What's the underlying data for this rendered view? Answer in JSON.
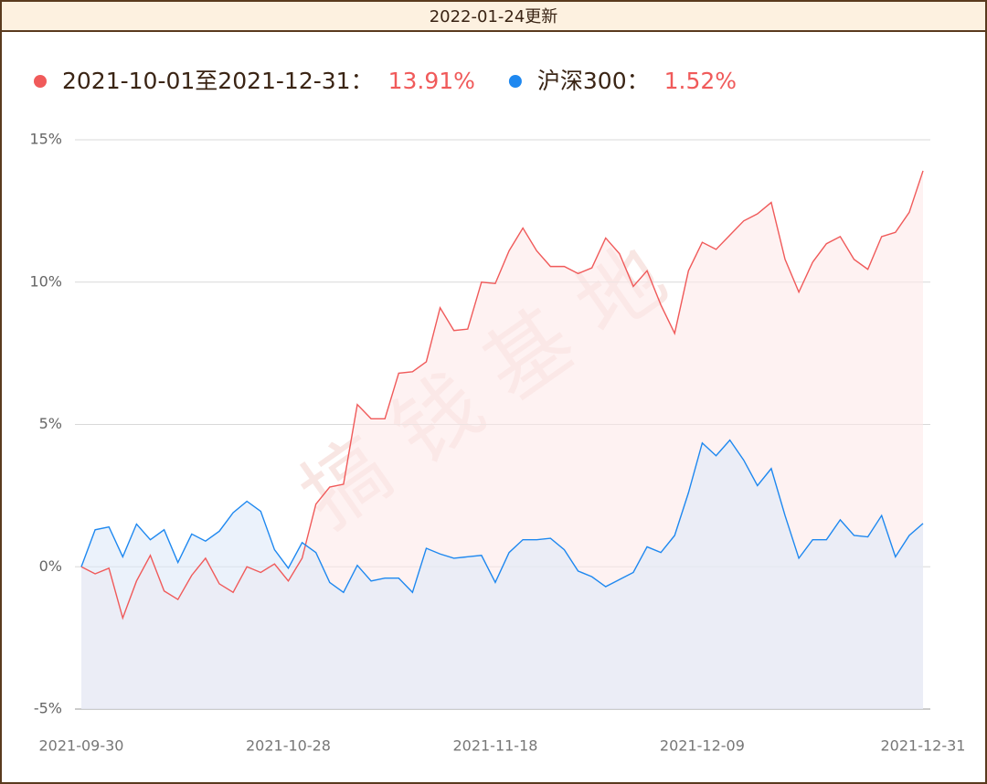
{
  "header": "2022-01-24更新",
  "chart_data": {
    "type": "line",
    "watermark": "搞钱基地",
    "categories": [
      "2021-09-30",
      null,
      null,
      null,
      null,
      null,
      null,
      null,
      null,
      null,
      null,
      null,
      null,
      null,
      null,
      "2021-10-28",
      null,
      null,
      null,
      null,
      null,
      null,
      null,
      null,
      null,
      null,
      null,
      null,
      null,
      null,
      "2021-11-18",
      null,
      null,
      null,
      null,
      null,
      null,
      null,
      null,
      null,
      null,
      null,
      null,
      null,
      null,
      "2021-12-09",
      null,
      null,
      null,
      null,
      null,
      null,
      null,
      null,
      null,
      null,
      null,
      null,
      null,
      null,
      null,
      "2021-12-31"
    ],
    "series": [
      {
        "name": "2021-10-01至2021-12-31：",
        "legend_value": "13.91%",
        "color": "#f05a5a",
        "fill": "#fdeaea",
        "values": [
          0,
          -0.25,
          -0.05,
          -1.8,
          -0.5,
          0.4,
          -0.85,
          -1.15,
          -0.3,
          0.3,
          -0.6,
          -0.9,
          0,
          -0.2,
          0.1,
          -0.5,
          0.3,
          2.2,
          2.8,
          2.9,
          5.7,
          5.2,
          5.2,
          6.8,
          6.85,
          7.2,
          9.1,
          8.3,
          8.35,
          10.0,
          9.95,
          11.1,
          11.9,
          11.1,
          10.55,
          10.55,
          10.3,
          10.5,
          11.55,
          11.0,
          9.85,
          10.4,
          9.2,
          8.2,
          10.4,
          11.4,
          11.15,
          11.65,
          12.15,
          12.4,
          12.8,
          10.8,
          9.65,
          10.7,
          11.35,
          11.6,
          10.8,
          10.45,
          11.6,
          11.75,
          12.45,
          13.91
        ]
      },
      {
        "name": "沪深300：",
        "legend_value": "1.52%",
        "color": "#1e88f0",
        "fill": "#dde9f8",
        "values": [
          0,
          1.3,
          1.4,
          0.35,
          1.5,
          0.95,
          1.3,
          0.15,
          1.15,
          0.9,
          1.25,
          1.9,
          2.3,
          1.95,
          0.6,
          -0.05,
          0.85,
          0.5,
          -0.55,
          -0.9,
          0.05,
          -0.5,
          -0.4,
          -0.4,
          -0.9,
          0.65,
          0.45,
          0.3,
          0.35,
          0.4,
          -0.55,
          0.5,
          0.95,
          0.95,
          1.0,
          0.6,
          -0.15,
          -0.35,
          -0.7,
          -0.45,
          -0.2,
          0.7,
          0.5,
          1.1,
          2.6,
          4.35,
          3.9,
          4.45,
          3.75,
          2.85,
          3.45,
          1.8,
          0.3,
          0.95,
          0.95,
          1.65,
          1.1,
          1.05,
          1.8,
          0.35,
          1.1,
          1.52
        ]
      }
    ],
    "ylim": [
      -5,
      15
    ],
    "yticks": [
      {
        "value": -5,
        "label": "-5%"
      },
      {
        "value": 0,
        "label": "0%"
      },
      {
        "value": 5,
        "label": "5%"
      },
      {
        "value": 10,
        "label": "10%"
      },
      {
        "value": 15,
        "label": "15%"
      }
    ],
    "grid": true,
    "legend": "top-left"
  }
}
